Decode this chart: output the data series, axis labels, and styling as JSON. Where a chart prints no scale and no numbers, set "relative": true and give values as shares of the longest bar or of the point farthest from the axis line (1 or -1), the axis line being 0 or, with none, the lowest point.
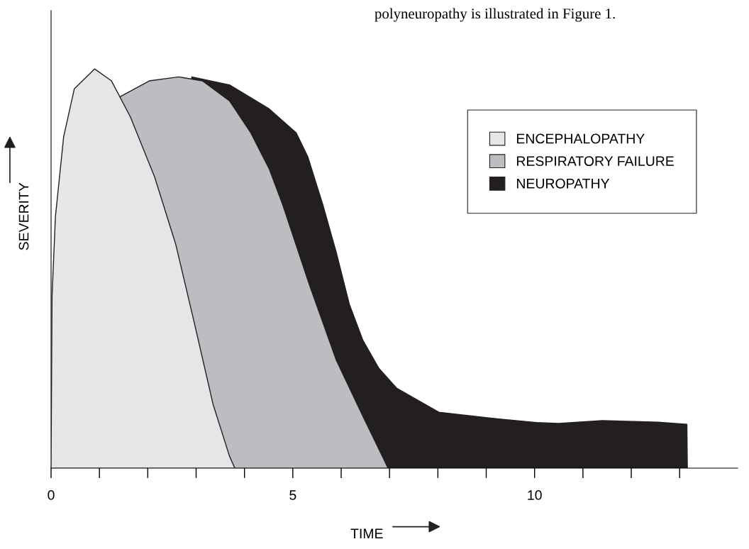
{
  "chart_data": {
    "type": "area",
    "relative": true,
    "xlabel": "TIME",
    "ylabel": "SEVERITY",
    "annotations": [
      "polyneuropathy is illustrated in Figure 1."
    ],
    "xlim": [
      0,
      14.2
    ],
    "xticks": [
      0,
      {
        "value": 1,
        "label": null
      },
      {
        "value": 2,
        "label": null
      },
      {
        "value": 3,
        "label": null
      },
      {
        "value": 4,
        "label": null
      },
      5,
      {
        "value": 6,
        "label": null
      },
      {
        "value": 7,
        "label": null
      },
      {
        "value": 8,
        "label": null
      },
      {
        "value": 9,
        "label": null
      },
      10,
      {
        "value": 11,
        "label": null
      },
      {
        "value": 12,
        "label": null
      },
      {
        "value": 13,
        "label": null
      }
    ],
    "legend": "right",
    "grid": false,
    "tick_labels": "x",
    "series": [
      {
        "name": "NEUROPATHY",
        "color": "#231f20",
        "x": [
          2.91,
          3.69,
          4.51,
          5.07,
          5.31,
          5.62,
          5.9,
          6.17,
          6.45,
          6.78,
          7.15,
          8.02,
          9.19,
          10.07,
          10.5,
          11.4,
          12.56,
          13.15,
          13.16
        ],
        "values": [
          0.98,
          0.96,
          0.9,
          0.84,
          0.78,
          0.66,
          0.54,
          0.41,
          0.32,
          0.25,
          0.2,
          0.14,
          0.124,
          0.114,
          0.112,
          0.119,
          0.115,
          0.11,
          0
        ]
      },
      {
        "name": "RESPIRATORY FAILURE",
        "color": "#bcbdc1",
        "x": [
          1.42,
          2.03,
          2.64,
          3.13,
          3.69,
          4.13,
          4.51,
          4.79,
          5.34,
          5.9,
          6.45,
          6.97
        ],
        "values": [
          0.93,
          0.97,
          0.98,
          0.97,
          0.92,
          0.84,
          0.75,
          0.66,
          0.46,
          0.27,
          0.13,
          0
        ]
      },
      {
        "name": "ENCEPHALOPATHY",
        "color": "#e5e6e8",
        "x": [
          0,
          0.02,
          0.09,
          0.26,
          0.48,
          0.9,
          1.25,
          1.64,
          2.14,
          2.58,
          2.97,
          3.35,
          3.69,
          3.8
        ],
        "values": [
          0,
          0.43,
          0.63,
          0.83,
          0.95,
          1.0,
          0.97,
          0.88,
          0.73,
          0.56,
          0.36,
          0.16,
          0.03,
          0
        ]
      }
    ]
  }
}
